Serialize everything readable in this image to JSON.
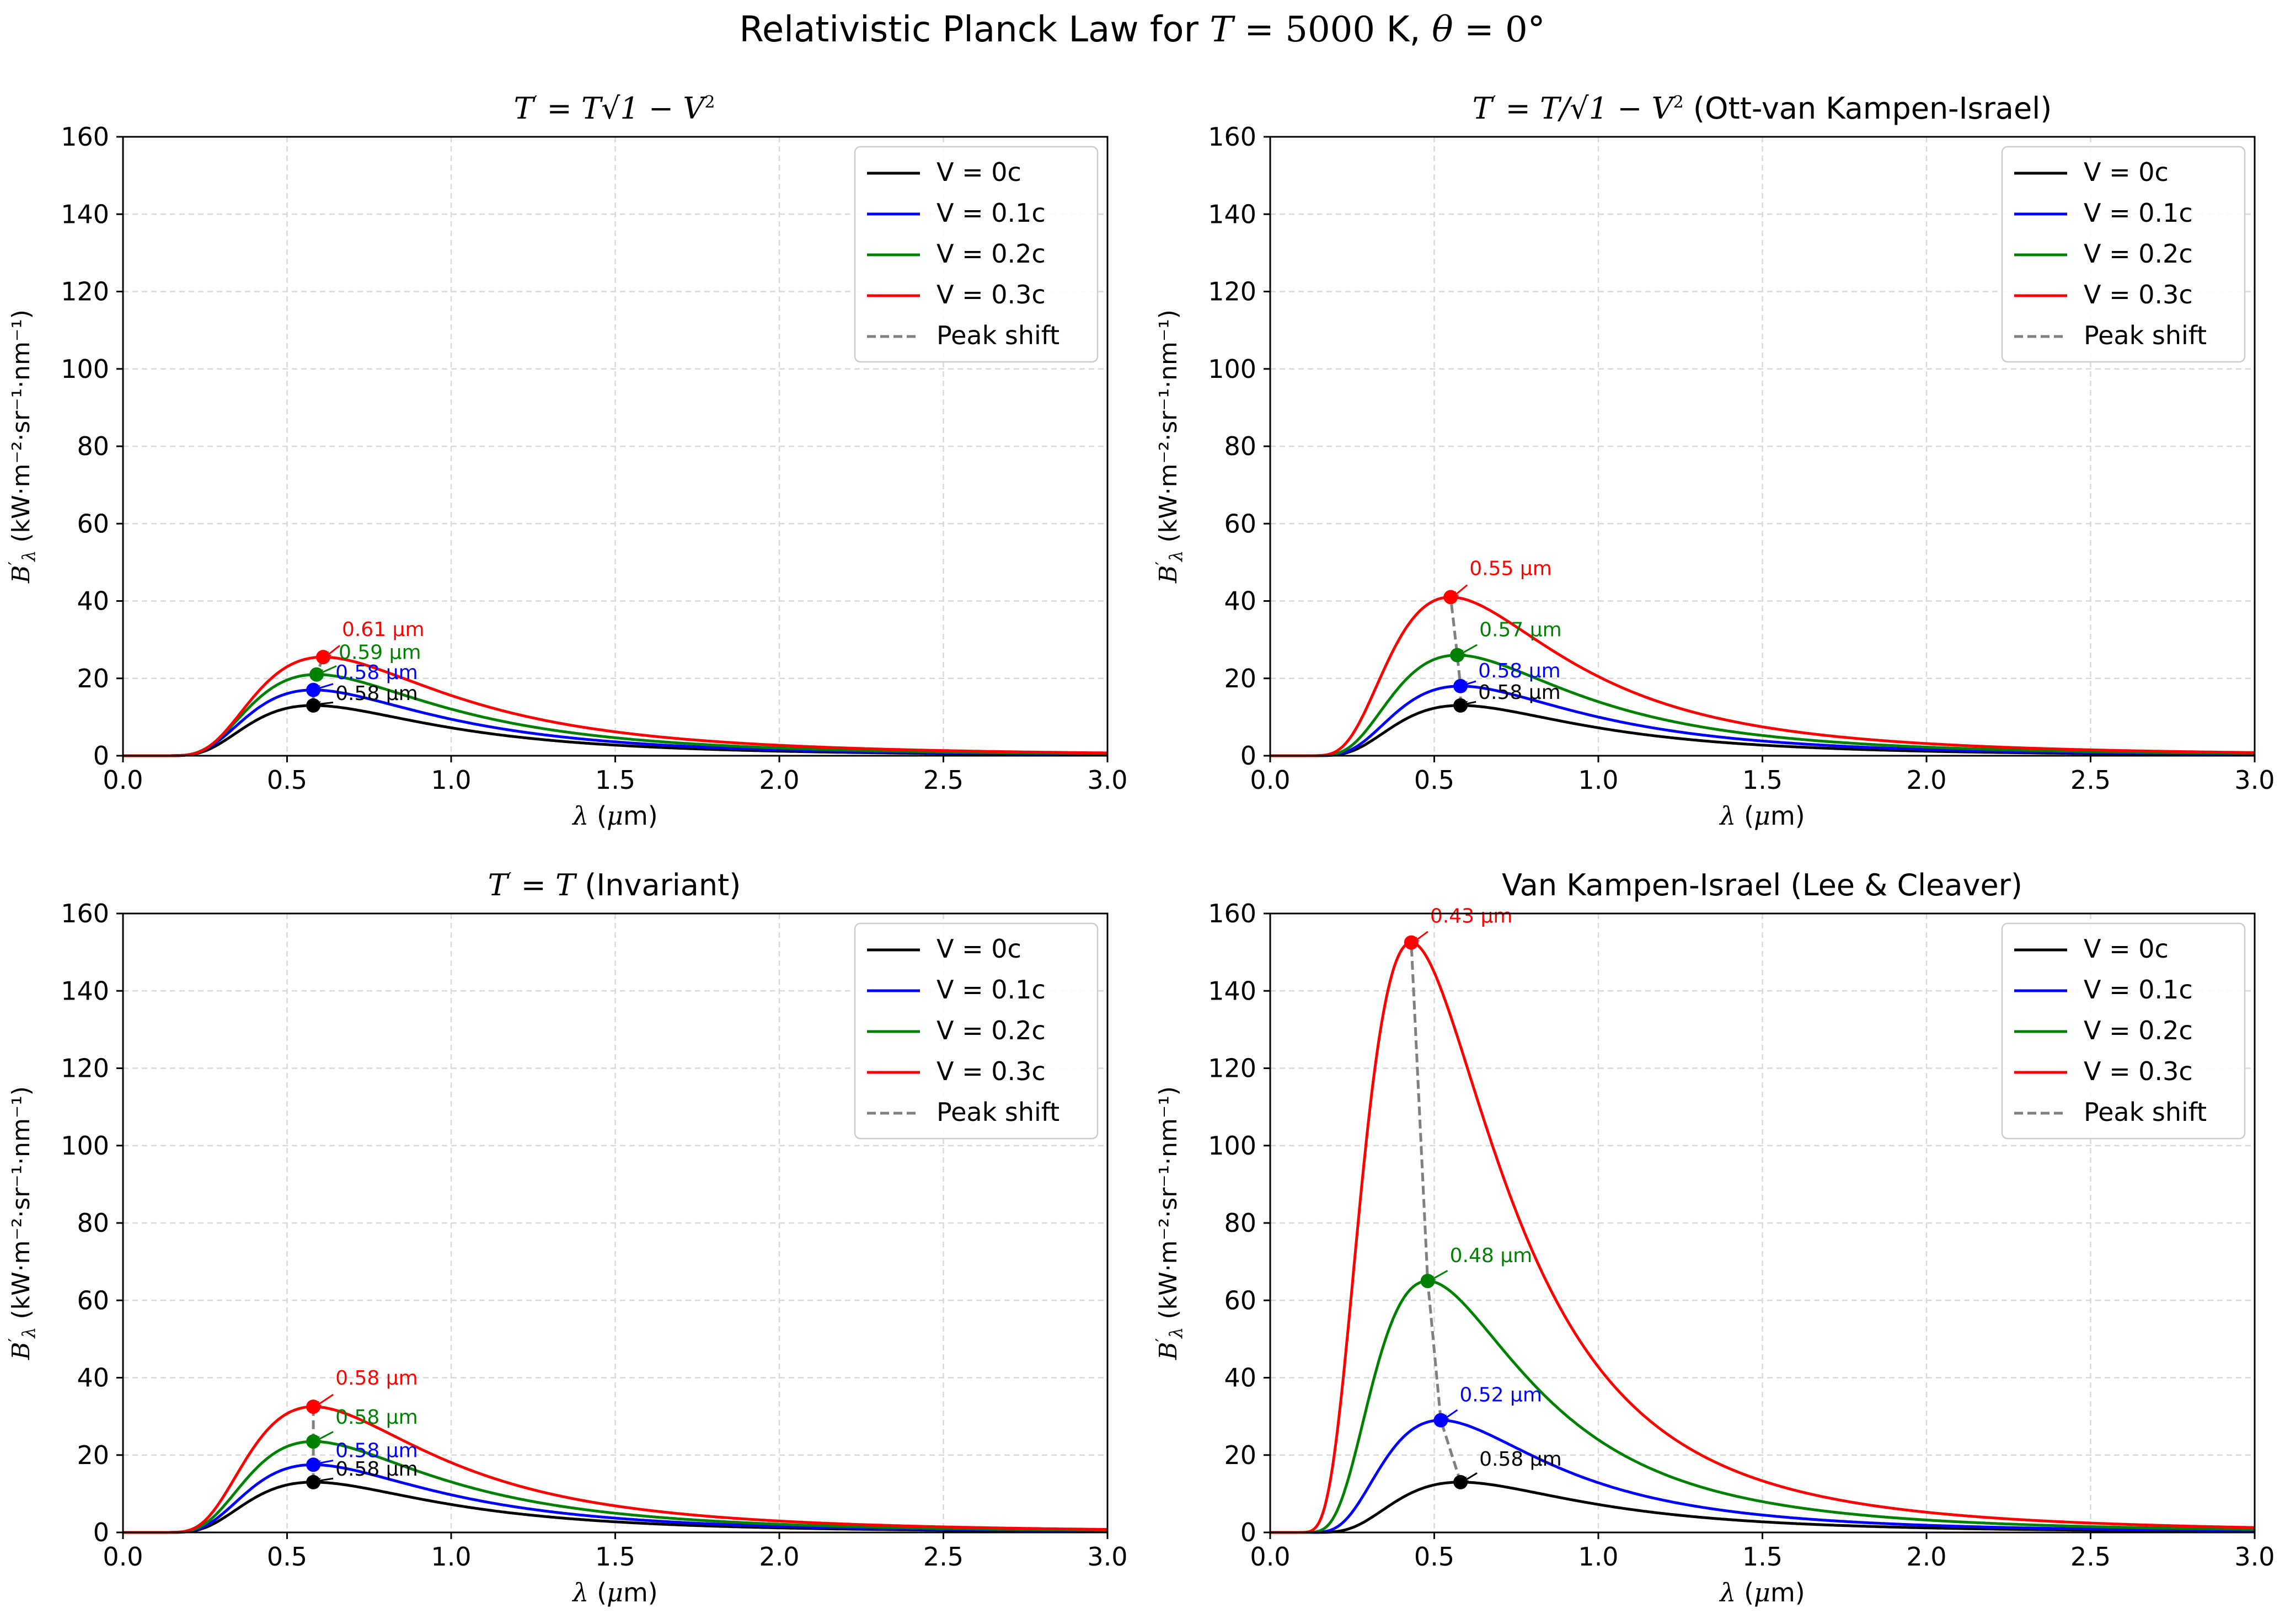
{
  "figure": {
    "title_prefix": "Relativistic Planck Law for ",
    "title_T": "T",
    "title_eq1": " = 5000",
    "title_unit": " K, ",
    "title_theta": "θ",
    "title_eq2": " = 0°"
  },
  "axis_text": {
    "xlabel_sym": "λ",
    "xlabel_open": " (",
    "xlabel_mu": "μ",
    "xlabel_close": "m)",
    "ylabel_B": "B",
    "ylabel_prime": "′",
    "ylabel_lambda": "λ",
    "ylabel_units": " (kW·m⁻²·sr⁻¹·nm⁻¹)"
  },
  "panel_titles": {
    "t1_T": "T",
    "t1_prime": "′",
    "t1_eq": " = T",
    "t1_sqrt": "√",
    "t1_body": "1 − V",
    "t1_sq": "2",
    "t2_T": "T",
    "t2_prime": "′",
    "t2_eq": " = T/",
    "t2_sqrt": "√",
    "t2_body": "1 − V",
    "t2_sq": "2",
    "t2_suffix": " (Ott-van Kampen-Israel)",
    "t3_T": "T",
    "t3_prime": "′",
    "t3_eq": " = T",
    "t3_suffix": " (Invariant)",
    "t4_title": "Van Kampen-Israel (Lee & Cleaver)"
  },
  "legend": [
    {
      "label": "V = 0c",
      "color": "#000000"
    },
    {
      "label": "V = 0.1c",
      "color": "#0000ff"
    },
    {
      "label": "V = 0.2c",
      "color": "#008000"
    },
    {
      "label": "V = 0.3c",
      "color": "#ff0000"
    },
    {
      "label": "Peak shift",
      "color": "#808080",
      "dashed": true
    }
  ],
  "chart_data": [
    {
      "type": "line",
      "title": "T′ = T√(1 − V²)",
      "xlabel": "λ (μm)",
      "ylabel": "B′λ (kW·m⁻²·sr⁻¹·nm⁻¹)",
      "xlim": [
        0,
        3.0
      ],
      "ylim": [
        0,
        160
      ],
      "xticks": [
        0,
        0.5,
        1.0,
        1.5,
        2.0,
        2.5,
        3.0
      ],
      "xtick_labels": [
        "0.0",
        "0.5",
        "1.0",
        "1.5",
        "2.0",
        "2.5",
        "3.0"
      ],
      "yticks": [
        0,
        20,
        40,
        60,
        80,
        100,
        120,
        140,
        160
      ],
      "ytick_labels": [
        "0",
        "20",
        "40",
        "60",
        "80",
        "100",
        "120",
        "140",
        "160"
      ],
      "grid": true,
      "legend_position": "top-right",
      "series": [
        {
          "name": "V = 0c",
          "color": "#000000",
          "peak_x": 0.58,
          "peak_y": 13.0,
          "peak_label": "0.58 μm"
        },
        {
          "name": "V = 0.1c",
          "color": "#0000ff",
          "peak_x": 0.58,
          "peak_y": 17.0,
          "peak_label": "0.58 μm"
        },
        {
          "name": "V = 0.2c",
          "color": "#008000",
          "peak_x": 0.59,
          "peak_y": 21.0,
          "peak_label": "0.59 μm"
        },
        {
          "name": "V = 0.3c",
          "color": "#ff0000",
          "peak_x": 0.61,
          "peak_y": 25.5,
          "peak_label": "0.61 μm"
        }
      ]
    },
    {
      "type": "line",
      "title": "T′ = T/√(1 − V²) (Ott-van Kampen-Israel)",
      "xlabel": "λ (μm)",
      "ylabel": "B′λ (kW·m⁻²·sr⁻¹·nm⁻¹)",
      "xlim": [
        0,
        3.0
      ],
      "ylim": [
        0,
        160
      ],
      "xticks": [
        0,
        0.5,
        1.0,
        1.5,
        2.0,
        2.5,
        3.0
      ],
      "xtick_labels": [
        "0.0",
        "0.5",
        "1.0",
        "1.5",
        "2.0",
        "2.5",
        "3.0"
      ],
      "yticks": [
        0,
        20,
        40,
        60,
        80,
        100,
        120,
        140,
        160
      ],
      "ytick_labels": [
        "0",
        "20",
        "40",
        "60",
        "80",
        "100",
        "120",
        "140",
        "160"
      ],
      "grid": true,
      "legend_position": "top-right",
      "series": [
        {
          "name": "V = 0c",
          "color": "#000000",
          "peak_x": 0.58,
          "peak_y": 13.0,
          "peak_label": "0.58 μm"
        },
        {
          "name": "V = 0.1c",
          "color": "#0000ff",
          "peak_x": 0.58,
          "peak_y": 18.0,
          "peak_label": "0.58 μm"
        },
        {
          "name": "V = 0.2c",
          "color": "#008000",
          "peak_x": 0.57,
          "peak_y": 26.0,
          "peak_label": "0.57 μm"
        },
        {
          "name": "V = 0.3c",
          "color": "#ff0000",
          "peak_x": 0.55,
          "peak_y": 41.0,
          "peak_label": "0.55 μm"
        }
      ]
    },
    {
      "type": "line",
      "title": "T′ = T (Invariant)",
      "xlabel": "λ (μm)",
      "ylabel": "B′λ (kW·m⁻²·sr⁻¹·nm⁻¹)",
      "xlim": [
        0,
        3.0
      ],
      "ylim": [
        0,
        160
      ],
      "xticks": [
        0,
        0.5,
        1.0,
        1.5,
        2.0,
        2.5,
        3.0
      ],
      "xtick_labels": [
        "0.0",
        "0.5",
        "1.0",
        "1.5",
        "2.0",
        "2.5",
        "3.0"
      ],
      "yticks": [
        0,
        20,
        40,
        60,
        80,
        100,
        120,
        140,
        160
      ],
      "ytick_labels": [
        "0",
        "20",
        "40",
        "60",
        "80",
        "100",
        "120",
        "140",
        "160"
      ],
      "grid": true,
      "legend_position": "top-right",
      "series": [
        {
          "name": "V = 0c",
          "color": "#000000",
          "peak_x": 0.58,
          "peak_y": 13.0,
          "peak_label": "0.58 μm"
        },
        {
          "name": "V = 0.1c",
          "color": "#0000ff",
          "peak_x": 0.58,
          "peak_y": 17.5,
          "peak_label": "0.58 μm"
        },
        {
          "name": "V = 0.2c",
          "color": "#008000",
          "peak_x": 0.58,
          "peak_y": 23.5,
          "peak_label": "0.58 μm"
        },
        {
          "name": "V = 0.3c",
          "color": "#ff0000",
          "peak_x": 0.58,
          "peak_y": 32.5,
          "peak_label": "0.58 μm"
        }
      ]
    },
    {
      "type": "line",
      "title": "Van Kampen-Israel (Lee & Cleaver)",
      "xlabel": "λ (μm)",
      "ylabel": "B′λ (kW·m⁻²·sr⁻¹·nm⁻¹)",
      "xlim": [
        0,
        3.0
      ],
      "ylim": [
        0,
        160
      ],
      "xticks": [
        0,
        0.5,
        1.0,
        1.5,
        2.0,
        2.5,
        3.0
      ],
      "xtick_labels": [
        "0.0",
        "0.5",
        "1.0",
        "1.5",
        "2.0",
        "2.5",
        "3.0"
      ],
      "yticks": [
        0,
        20,
        40,
        60,
        80,
        100,
        120,
        140,
        160
      ],
      "ytick_labels": [
        "0",
        "20",
        "40",
        "60",
        "80",
        "100",
        "120",
        "140",
        "160"
      ],
      "grid": true,
      "legend_position": "top-right",
      "series": [
        {
          "name": "V = 0c",
          "color": "#000000",
          "peak_x": 0.58,
          "peak_y": 13.0,
          "peak_label": "0.58 μm"
        },
        {
          "name": "V = 0.1c",
          "color": "#0000ff",
          "peak_x": 0.52,
          "peak_y": 29.0,
          "peak_label": "0.52 μm"
        },
        {
          "name": "V = 0.2c",
          "color": "#008000",
          "peak_x": 0.48,
          "peak_y": 65.0,
          "peak_label": "0.48 μm"
        },
        {
          "name": "V = 0.3c",
          "color": "#ff0000",
          "peak_x": 0.43,
          "peak_y": 152.5,
          "peak_label": "0.43 μm"
        }
      ]
    }
  ]
}
